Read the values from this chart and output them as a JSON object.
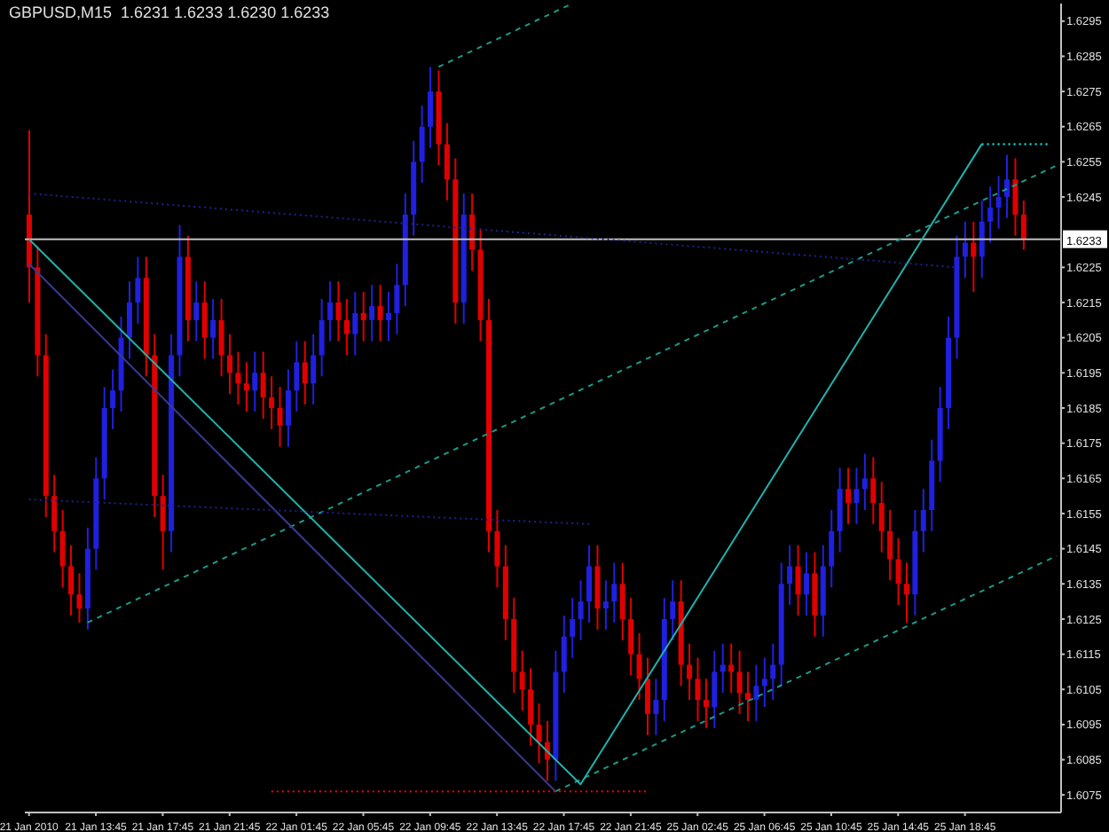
{
  "chart_data": {
    "type": "candlestick",
    "title": "GBPUSD,M15  1.6231 1.6233 1.6230 1.6233",
    "categories": [
      "21 Jan 2010",
      null,
      null,
      null,
      null,
      null,
      null,
      null,
      "21 Jan 13:45",
      null,
      null,
      null,
      null,
      null,
      null,
      null,
      "21 Jan 17:45",
      null,
      null,
      null,
      null,
      null,
      null,
      null,
      "21 Jan 21:45",
      null,
      null,
      null,
      null,
      null,
      null,
      null,
      "22 Jan 01:45",
      null,
      null,
      null,
      null,
      null,
      null,
      null,
      "22 Jan 05:45",
      null,
      null,
      null,
      null,
      null,
      null,
      null,
      "22 Jan 09:45",
      null,
      null,
      null,
      null,
      null,
      null,
      null,
      "22 Jan 13:45",
      null,
      null,
      null,
      null,
      null,
      null,
      null,
      "22 Jan 17:45",
      null,
      null,
      null,
      null,
      null,
      null,
      null,
      "22 Jan 21:45",
      null,
      null,
      null,
      null,
      null,
      null,
      null,
      "25 Jan 02:45",
      null,
      null,
      null,
      null,
      null,
      null,
      null,
      "25 Jan 06:45",
      null,
      null,
      null,
      null,
      null,
      null,
      null,
      "25 Jan 10:45",
      null,
      null,
      null,
      null,
      null,
      null,
      null,
      "25 Jan 14:45",
      null,
      null,
      null,
      null,
      null,
      null,
      null,
      "25 Jan 18:45",
      null,
      null,
      null,
      null,
      null,
      null,
      null,
      null,
      null,
      null,
      null
    ],
    "ohlc": [
      [
        1.624,
        1.6264,
        1.6215,
        1.6225
      ],
      [
        1.6225,
        1.6231,
        1.6194,
        1.62
      ],
      [
        1.62,
        1.6206,
        1.6154,
        1.616
      ],
      [
        1.616,
        1.6166,
        1.6144,
        1.615
      ],
      [
        1.615,
        1.6156,
        1.6134,
        1.614
      ],
      [
        1.614,
        1.6146,
        1.6126,
        1.6132
      ],
      [
        1.6132,
        1.6138,
        1.6124,
        1.6128
      ],
      [
        1.6128,
        1.6151,
        1.6122,
        1.6145
      ],
      [
        1.6145,
        1.6171,
        1.6139,
        1.6165
      ],
      [
        1.6165,
        1.6191,
        1.6159,
        1.6185
      ],
      [
        1.6185,
        1.6196,
        1.6179,
        1.619
      ],
      [
        1.619,
        1.6211,
        1.6184,
        1.6205
      ],
      [
        1.6205,
        1.6221,
        1.6199,
        1.6215
      ],
      [
        1.6215,
        1.6228,
        1.6209,
        1.6222
      ],
      [
        1.6222,
        1.6228,
        1.6194,
        1.62
      ],
      [
        1.62,
        1.6206,
        1.6154,
        1.616
      ],
      [
        1.616,
        1.6166,
        1.6139,
        1.615
      ],
      [
        1.615,
        1.6206,
        1.6144,
        1.62
      ],
      [
        1.62,
        1.6237,
        1.6194,
        1.6228
      ],
      [
        1.6228,
        1.6234,
        1.6204,
        1.621
      ],
      [
        1.621,
        1.6221,
        1.6204,
        1.6215
      ],
      [
        1.6215,
        1.6221,
        1.6199,
        1.6205
      ],
      [
        1.6205,
        1.6216,
        1.6199,
        1.621
      ],
      [
        1.621,
        1.6216,
        1.6194,
        1.62
      ],
      [
        1.62,
        1.6206,
        1.6189,
        1.6195
      ],
      [
        1.6195,
        1.6201,
        1.6186,
        1.6192
      ],
      [
        1.6192,
        1.6198,
        1.6184,
        1.619
      ],
      [
        1.619,
        1.6201,
        1.6184,
        1.6195
      ],
      [
        1.6195,
        1.6201,
        1.6182,
        1.6188
      ],
      [
        1.6188,
        1.6194,
        1.6179,
        1.6185
      ],
      [
        1.6185,
        1.6191,
        1.6174,
        1.618
      ],
      [
        1.618,
        1.6196,
        1.6174,
        1.619
      ],
      [
        1.619,
        1.6204,
        1.6184,
        1.6198
      ],
      [
        1.6198,
        1.6204,
        1.6186,
        1.6192
      ],
      [
        1.6192,
        1.6206,
        1.6186,
        1.62
      ],
      [
        1.62,
        1.6216,
        1.6194,
        1.621
      ],
      [
        1.621,
        1.6221,
        1.6204,
        1.6215
      ],
      [
        1.6215,
        1.6221,
        1.6204,
        1.621
      ],
      [
        1.621,
        1.6216,
        1.62,
        1.6206
      ],
      [
        1.6206,
        1.6218,
        1.62,
        1.6212
      ],
      [
        1.6212,
        1.6218,
        1.6204,
        1.621
      ],
      [
        1.621,
        1.622,
        1.6204,
        1.6214
      ],
      [
        1.6214,
        1.622,
        1.6204,
        1.621
      ],
      [
        1.621,
        1.6218,
        1.6204,
        1.6212
      ],
      [
        1.6212,
        1.6226,
        1.6206,
        1.622
      ],
      [
        1.622,
        1.6246,
        1.6214,
        1.624
      ],
      [
        1.624,
        1.6261,
        1.6234,
        1.6255
      ],
      [
        1.6255,
        1.6271,
        1.6249,
        1.6265
      ],
      [
        1.6265,
        1.6282,
        1.6259,
        1.6275
      ],
      [
        1.6275,
        1.6281,
        1.6254,
        1.626
      ],
      [
        1.626,
        1.6266,
        1.6244,
        1.625
      ],
      [
        1.625,
        1.6256,
        1.6209,
        1.6215
      ],
      [
        1.6215,
        1.6246,
        1.6209,
        1.624
      ],
      [
        1.624,
        1.6246,
        1.6224,
        1.623
      ],
      [
        1.623,
        1.6236,
        1.6204,
        1.621
      ],
      [
        1.621,
        1.6216,
        1.6144,
        1.615
      ],
      [
        1.615,
        1.6156,
        1.6134,
        1.614
      ],
      [
        1.614,
        1.6146,
        1.6119,
        1.6125
      ],
      [
        1.6125,
        1.6131,
        1.6104,
        1.611
      ],
      [
        1.611,
        1.6116,
        1.6099,
        1.6105
      ],
      [
        1.6105,
        1.6111,
        1.6089,
        1.6095
      ],
      [
        1.6095,
        1.6101,
        1.6084,
        1.609
      ],
      [
        1.609,
        1.6096,
        1.6079,
        1.6085
      ],
      [
        1.6085,
        1.6116,
        1.6079,
        1.611
      ],
      [
        1.611,
        1.6126,
        1.6104,
        1.612
      ],
      [
        1.612,
        1.6131,
        1.6114,
        1.6125
      ],
      [
        1.6125,
        1.6136,
        1.6119,
        1.613
      ],
      [
        1.613,
        1.6146,
        1.6124,
        1.614
      ],
      [
        1.614,
        1.6146,
        1.6122,
        1.6128
      ],
      [
        1.6128,
        1.6136,
        1.6122,
        1.613
      ],
      [
        1.613,
        1.6141,
        1.6124,
        1.6135
      ],
      [
        1.6135,
        1.6141,
        1.6119,
        1.6125
      ],
      [
        1.6125,
        1.6131,
        1.6109,
        1.6115
      ],
      [
        1.6115,
        1.6121,
        1.6102,
        1.6108
      ],
      [
        1.6108,
        1.6114,
        1.6092,
        1.6098
      ],
      [
        1.6098,
        1.6108,
        1.6092,
        1.6102
      ],
      [
        1.6102,
        1.6131,
        1.6096,
        1.6125
      ],
      [
        1.6125,
        1.6136,
        1.6119,
        1.613
      ],
      [
        1.613,
        1.6136,
        1.6106,
        1.6112
      ],
      [
        1.6112,
        1.6118,
        1.6102,
        1.6108
      ],
      [
        1.6108,
        1.6114,
        1.6096,
        1.6102
      ],
      [
        1.6102,
        1.6108,
        1.6094,
        1.61
      ],
      [
        1.61,
        1.6116,
        1.6094,
        1.611
      ],
      [
        1.611,
        1.6118,
        1.6104,
        1.6112
      ],
      [
        1.6112,
        1.6118,
        1.6104,
        1.611
      ],
      [
        1.611,
        1.6116,
        1.6098,
        1.6104
      ],
      [
        1.6104,
        1.611,
        1.6096,
        1.6102
      ],
      [
        1.6102,
        1.6112,
        1.6096,
        1.6106
      ],
      [
        1.6106,
        1.6114,
        1.61,
        1.6108
      ],
      [
        1.6108,
        1.6118,
        1.6102,
        1.6112
      ],
      [
        1.6112,
        1.6141,
        1.6106,
        1.6135
      ],
      [
        1.6135,
        1.6146,
        1.6129,
        1.614
      ],
      [
        1.614,
        1.6146,
        1.6126,
        1.6132
      ],
      [
        1.6132,
        1.6144,
        1.6126,
        1.6138
      ],
      [
        1.6138,
        1.6144,
        1.612,
        1.6126
      ],
      [
        1.6126,
        1.6146,
        1.612,
        1.614
      ],
      [
        1.614,
        1.6156,
        1.6134,
        1.615
      ],
      [
        1.615,
        1.6168,
        1.6144,
        1.6162
      ],
      [
        1.6162,
        1.6168,
        1.6152,
        1.6158
      ],
      [
        1.6158,
        1.6168,
        1.6152,
        1.6162
      ],
      [
        1.6162,
        1.6172,
        1.6156,
        1.6165
      ],
      [
        1.6165,
        1.6171,
        1.6152,
        1.6158
      ],
      [
        1.6158,
        1.6164,
        1.6144,
        1.615
      ],
      [
        1.615,
        1.6156,
        1.6136,
        1.6142
      ],
      [
        1.6142,
        1.6148,
        1.6129,
        1.6135
      ],
      [
        1.6135,
        1.6141,
        1.6124,
        1.6132
      ],
      [
        1.6132,
        1.6156,
        1.6126,
        1.615
      ],
      [
        1.615,
        1.6162,
        1.6144,
        1.6156
      ],
      [
        1.6156,
        1.6176,
        1.615,
        1.617
      ],
      [
        1.617,
        1.6191,
        1.6164,
        1.6185
      ],
      [
        1.6185,
        1.6211,
        1.6179,
        1.6205
      ],
      [
        1.6205,
        1.6234,
        1.6199,
        1.6228
      ],
      [
        1.6228,
        1.6238,
        1.6222,
        1.6232
      ],
      [
        1.6232,
        1.6238,
        1.6218,
        1.6228
      ],
      [
        1.6228,
        1.6244,
        1.6222,
        1.6238
      ],
      [
        1.6238,
        1.6248,
        1.6232,
        1.6242
      ],
      [
        1.6242,
        1.6251,
        1.6236,
        1.6245
      ],
      [
        1.6245,
        1.6257,
        1.6239,
        1.625
      ],
      [
        1.625,
        1.6256,
        1.6234,
        1.624
      ],
      [
        1.624,
        1.6244,
        1.623,
        1.6233
      ],
      null,
      null,
      null,
      null
    ],
    "series": [
      {
        "type": "line",
        "color": "#1a9a8a",
        "line_style": "dashed",
        "values": [
          null,
          null,
          null,
          null,
          null,
          null,
          null,
          1.6124,
          null,
          null,
          null,
          null,
          null,
          null,
          null,
          null,
          null,
          null,
          null,
          null,
          null,
          null,
          null,
          null,
          null,
          null,
          null,
          null,
          null,
          null,
          null,
          null,
          null,
          null,
          null,
          null,
          null,
          null,
          null,
          null,
          null,
          null,
          null,
          null,
          null,
          null,
          null,
          null,
          null,
          null,
          null,
          null,
          null,
          null,
          null,
          null,
          null,
          null,
          null,
          null,
          null,
          null,
          null,
          null,
          null,
          null,
          null,
          null,
          null,
          null,
          null,
          null,
          null,
          null,
          null,
          null,
          null,
          null,
          null,
          null,
          null,
          null,
          null,
          null,
          null,
          null,
          null,
          null,
          null,
          null,
          null,
          null,
          null,
          null,
          null,
          null,
          null,
          null,
          null,
          null,
          null,
          null,
          null,
          null,
          null,
          null,
          null,
          null,
          null,
          null,
          null,
          null,
          null,
          null,
          null,
          null,
          null,
          null,
          null,
          null,
          null,
          null,
          null,
          1.6254
        ]
      },
      {
        "type": "line",
        "color": "#1a9a8a",
        "line_style": "dashed",
        "values": [
          null,
          null,
          null,
          null,
          null,
          null,
          null,
          null,
          null,
          null,
          null,
          null,
          null,
          null,
          null,
          null,
          null,
          null,
          null,
          null,
          null,
          null,
          null,
          null,
          null,
          null,
          null,
          null,
          null,
          null,
          null,
          null,
          null,
          null,
          null,
          null,
          null,
          null,
          null,
          null,
          null,
          null,
          null,
          null,
          null,
          null,
          null,
          null,
          null,
          1.6282,
          null,
          null,
          null,
          null,
          null,
          null,
          null,
          null,
          null,
          null,
          null,
          null,
          null,
          null,
          null,
          1.63,
          null,
          null,
          null,
          null,
          null,
          null,
          null,
          null,
          null,
          null,
          null,
          null,
          null,
          null,
          null,
          null,
          null,
          null,
          null,
          null,
          null,
          null,
          null,
          null,
          null,
          null,
          null,
          null,
          null,
          null,
          null,
          null,
          null,
          null,
          null,
          null,
          null,
          null,
          null,
          null,
          null,
          null,
          null,
          null,
          null,
          null,
          null,
          null,
          null,
          null,
          null,
          null,
          null,
          null,
          null,
          null,
          null,
          null
        ]
      },
      {
        "type": "line",
        "color": "#1a9a8a",
        "line_style": "dashed",
        "values": [
          null,
          null,
          null,
          null,
          null,
          null,
          null,
          null,
          null,
          null,
          null,
          null,
          null,
          null,
          null,
          null,
          null,
          null,
          null,
          null,
          null,
          null,
          null,
          null,
          null,
          null,
          null,
          null,
          null,
          null,
          null,
          null,
          null,
          null,
          null,
          null,
          null,
          null,
          null,
          null,
          null,
          null,
          null,
          null,
          null,
          null,
          null,
          null,
          null,
          null,
          null,
          null,
          null,
          null,
          null,
          null,
          null,
          null,
          null,
          null,
          null,
          null,
          null,
          1.6076,
          null,
          null,
          null,
          null,
          null,
          null,
          null,
          null,
          null,
          null,
          null,
          null,
          null,
          null,
          null,
          null,
          null,
          null,
          null,
          null,
          null,
          null,
          null,
          null,
          null,
          null,
          null,
          null,
          null,
          null,
          null,
          null,
          null,
          null,
          null,
          null,
          null,
          null,
          null,
          null,
          null,
          null,
          null,
          null,
          null,
          null,
          null,
          null,
          null,
          null,
          null,
          null,
          null,
          null,
          null,
          null,
          null,
          null,
          null,
          1.6143
        ]
      },
      {
        "type": "line",
        "color": "#20b2aa",
        "line_style": "solid",
        "values": [
          1.6233,
          null,
          null,
          null,
          null,
          null,
          null,
          null,
          null,
          null,
          null,
          null,
          null,
          null,
          null,
          null,
          null,
          null,
          null,
          null,
          null,
          null,
          null,
          null,
          null,
          null,
          null,
          null,
          null,
          null,
          null,
          null,
          null,
          null,
          null,
          null,
          null,
          null,
          null,
          null,
          null,
          null,
          null,
          null,
          null,
          null,
          null,
          null,
          null,
          null,
          null,
          null,
          null,
          null,
          null,
          null,
          null,
          null,
          null,
          null,
          null,
          null,
          null,
          null,
          null,
          null,
          1.6078,
          null,
          null,
          null,
          null,
          null,
          null,
          null,
          null,
          null,
          null,
          null,
          null,
          null,
          null,
          null,
          null,
          null,
          null,
          null,
          null,
          null,
          null,
          null,
          null,
          null,
          null,
          null,
          null,
          null,
          null,
          null,
          null,
          null,
          null,
          null,
          null,
          null,
          null,
          null,
          null,
          null,
          null,
          null,
          null,
          null,
          null,
          null,
          1.626,
          null,
          null,
          null,
          null,
          null,
          null,
          null,
          null,
          null
        ]
      },
      {
        "type": "line",
        "color": "#3a3a90",
        "line_style": "solid",
        "values": [
          1.6226,
          null,
          null,
          null,
          null,
          null,
          null,
          null,
          null,
          null,
          null,
          null,
          null,
          null,
          null,
          null,
          null,
          null,
          null,
          null,
          null,
          null,
          null,
          null,
          null,
          null,
          null,
          null,
          null,
          null,
          null,
          null,
          null,
          null,
          null,
          null,
          null,
          null,
          null,
          null,
          null,
          null,
          null,
          null,
          null,
          null,
          null,
          null,
          null,
          null,
          null,
          null,
          null,
          null,
          null,
          null,
          null,
          null,
          null,
          null,
          null,
          null,
          null,
          1.6076,
          null,
          null,
          null,
          null,
          null,
          null,
          null,
          null,
          null,
          null,
          null,
          null,
          null,
          null,
          null,
          null,
          null,
          null,
          null,
          null,
          null,
          null,
          null,
          null,
          null,
          null,
          null,
          null,
          null,
          null,
          null,
          null,
          null,
          null,
          null,
          null,
          null,
          null,
          null,
          null,
          null,
          null,
          null,
          null,
          null,
          null,
          null,
          null,
          null,
          null,
          null,
          null,
          null,
          null,
          null,
          null,
          null,
          null,
          null,
          null
        ]
      },
      {
        "type": "line",
        "color": "#202090",
        "line_style": "dotted",
        "values": [
          1.6246,
          null,
          null,
          null,
          null,
          null,
          null,
          null,
          null,
          null,
          null,
          null,
          null,
          null,
          null,
          null,
          null,
          null,
          null,
          null,
          null,
          null,
          null,
          null,
          null,
          null,
          null,
          null,
          null,
          null,
          null,
          null,
          null,
          null,
          null,
          null,
          null,
          null,
          null,
          null,
          null,
          null,
          null,
          null,
          null,
          null,
          null,
          null,
          null,
          null,
          null,
          null,
          null,
          null,
          null,
          null,
          null,
          null,
          null,
          null,
          null,
          null,
          null,
          null,
          null,
          null,
          null,
          null,
          null,
          null,
          null,
          null,
          null,
          null,
          null,
          null,
          null,
          null,
          null,
          null,
          null,
          null,
          null,
          null,
          null,
          null,
          null,
          null,
          null,
          null,
          null,
          null,
          null,
          null,
          null,
          null,
          null,
          null,
          null,
          null,
          null,
          null,
          null,
          null,
          null,
          null,
          null,
          null,
          null,
          null,
          null,
          1.6225,
          null,
          null,
          null,
          null,
          null,
          null,
          null,
          null,
          null,
          null,
          null,
          null
        ]
      },
      {
        "type": "line",
        "color": "#202090",
        "line_style": "dotted",
        "values": [
          1.6159,
          null,
          null,
          null,
          null,
          null,
          null,
          null,
          null,
          null,
          null,
          null,
          null,
          null,
          null,
          null,
          null,
          null,
          null,
          null,
          null,
          null,
          null,
          null,
          null,
          null,
          null,
          null,
          null,
          null,
          null,
          null,
          null,
          null,
          null,
          null,
          null,
          null,
          null,
          null,
          null,
          null,
          null,
          null,
          null,
          null,
          null,
          null,
          null,
          null,
          null,
          null,
          null,
          null,
          null,
          null,
          null,
          null,
          null,
          null,
          null,
          null,
          null,
          null,
          null,
          null,
          null,
          1.6152,
          null,
          null,
          null,
          null,
          null,
          null,
          null,
          null,
          null,
          null,
          null,
          null,
          null,
          null,
          null,
          null,
          null,
          null,
          null,
          null,
          null,
          null,
          null,
          null,
          null,
          null,
          null,
          null,
          null,
          null,
          null,
          null,
          null,
          null,
          null,
          null,
          null,
          null,
          null,
          null,
          null,
          null,
          null,
          null,
          null,
          null,
          null,
          null,
          null,
          null,
          null,
          null,
          null,
          null,
          null,
          null
        ]
      },
      {
        "type": "line",
        "color": "#ff0000",
        "line_style": "dotted",
        "values": [
          null,
          null,
          null,
          null,
          null,
          null,
          null,
          null,
          null,
          null,
          null,
          null,
          null,
          null,
          null,
          null,
          null,
          null,
          null,
          null,
          null,
          null,
          null,
          null,
          null,
          null,
          null,
          null,
          null,
          1.6076,
          null,
          null,
          null,
          null,
          null,
          null,
          null,
          null,
          null,
          null,
          null,
          null,
          null,
          null,
          null,
          null,
          null,
          null,
          null,
          null,
          null,
          null,
          null,
          null,
          null,
          null,
          null,
          null,
          null,
          null,
          null,
          null,
          null,
          null,
          null,
          null,
          null,
          null,
          null,
          null,
          null,
          null,
          null,
          null,
          1.6076,
          null,
          null,
          null,
          null,
          null,
          null,
          null,
          null,
          null,
          null,
          null,
          null,
          null,
          null,
          null,
          null,
          null,
          null,
          null,
          null,
          null,
          null,
          null,
          null,
          null,
          null,
          null,
          null,
          null,
          null,
          null,
          null,
          null,
          null,
          null,
          null,
          null,
          null,
          null,
          null,
          null,
          null,
          null,
          null,
          null,
          null,
          null,
          null,
          null
        ]
      },
      {
        "type": "line",
        "color": "#00ffff",
        "line_style": "dotted",
        "values": [
          null,
          null,
          null,
          null,
          null,
          null,
          null,
          null,
          null,
          null,
          null,
          null,
          null,
          null,
          null,
          null,
          null,
          null,
          null,
          null,
          null,
          null,
          null,
          null,
          null,
          null,
          null,
          null,
          null,
          null,
          null,
          null,
          null,
          null,
          null,
          null,
          null,
          null,
          null,
          null,
          null,
          null,
          null,
          null,
          null,
          null,
          null,
          null,
          null,
          null,
          null,
          null,
          null,
          null,
          null,
          null,
          null,
          null,
          null,
          null,
          null,
          null,
          null,
          null,
          null,
          null,
          null,
          null,
          null,
          null,
          null,
          null,
          null,
          null,
          null,
          null,
          null,
          null,
          null,
          null,
          null,
          null,
          null,
          null,
          null,
          null,
          null,
          null,
          null,
          null,
          null,
          null,
          null,
          null,
          null,
          null,
          null,
          null,
          null,
          null,
          null,
          null,
          null,
          null,
          null,
          null,
          null,
          null,
          null,
          null,
          null,
          null,
          null,
          null,
          1.626,
          null,
          null,
          null,
          null,
          null,
          null,
          null,
          1.626,
          null
        ]
      }
    ],
    "ylim": [
      1.607,
      1.63
    ],
    "yticks": [
      1.6075,
      1.6085,
      1.6095,
      1.6105,
      1.6115,
      1.6125,
      1.6135,
      1.6145,
      1.6155,
      1.6165,
      1.6175,
      1.6185,
      1.6195,
      1.6205,
      1.6215,
      1.6225,
      1.6245,
      1.6255,
      1.6265,
      1.6275,
      1.6285,
      1.6295
    ],
    "ref_lines": [
      {
        "axis": "y",
        "value": 1.6233,
        "label": "1.6233",
        "color": "#c0c0c0"
      }
    ]
  }
}
